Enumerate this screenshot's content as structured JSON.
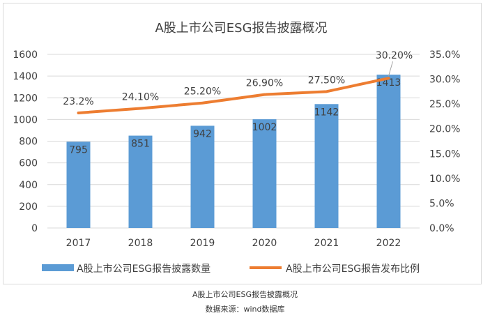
{
  "chart_data": {
    "type": "bar",
    "title": "A股上市公司ESG报告披露概况",
    "categories": [
      "2017",
      "2018",
      "2019",
      "2020",
      "2021",
      "2022"
    ],
    "series": [
      {
        "name": "A股上市公司ESG报告披露数量",
        "type": "bar",
        "axis": "left",
        "color": "#5b9bd5",
        "values": [
          795,
          851,
          942,
          1002,
          1142,
          1413
        ],
        "labels": [
          "795",
          "851",
          "942",
          "1002",
          "1142",
          "1413"
        ]
      },
      {
        "name": "A股上市公司ESG报告发布比例",
        "type": "line",
        "axis": "right",
        "color": "#ed7d31",
        "values": [
          23.2,
          24.1,
          25.2,
          26.9,
          27.5,
          30.2
        ],
        "labels": [
          "23.2%",
          "24.10%",
          "25.20%",
          "26.90%",
          "27.50%",
          "30.20%"
        ]
      }
    ],
    "y_left": {
      "ylim": [
        0,
        1600
      ],
      "ticks": [
        "0",
        "200",
        "400",
        "600",
        "800",
        "1000",
        "1200",
        "1400",
        "1600"
      ]
    },
    "y_right": {
      "ylim": [
        0,
        35
      ],
      "ticks": [
        "0.0%",
        "5.0%",
        "10.0%",
        "15.0%",
        "20.0%",
        "25.0%",
        "30.0%",
        "35.0%"
      ]
    },
    "grid": true,
    "legend_position": "bottom"
  },
  "captions": {
    "line1": "A股上市公司ESG报告披露概况",
    "line2": "数据来源：wind数据库"
  }
}
